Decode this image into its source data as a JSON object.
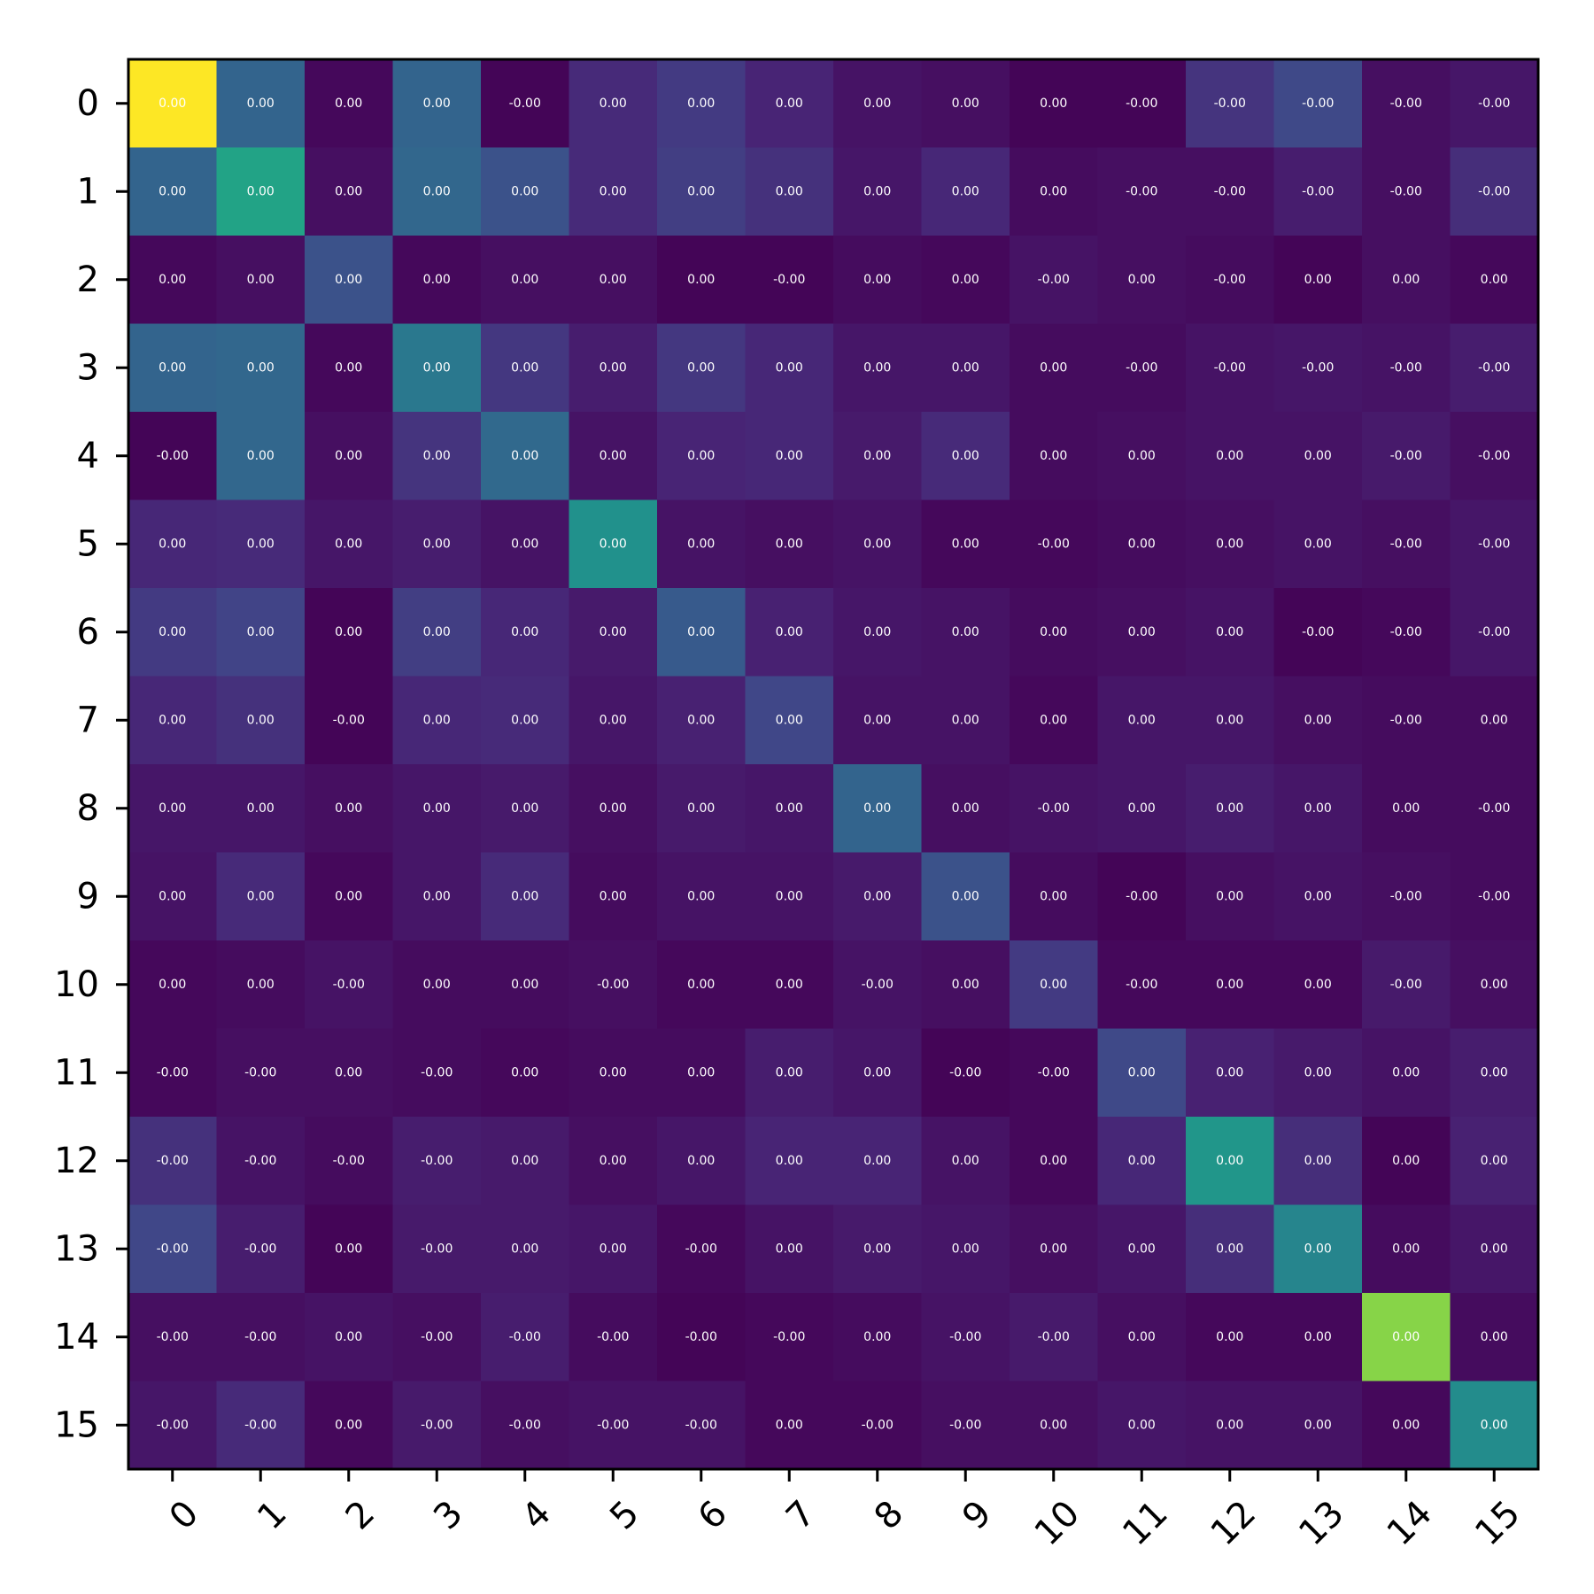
{
  "chart_data": {
    "type": "heatmap",
    "title": "",
    "xlabel": "",
    "ylabel": "",
    "colormap": "viridis",
    "color_range": [
      0,
      1
    ],
    "grid": false,
    "x_categories": [
      "0",
      "1",
      "2",
      "3",
      "4",
      "5",
      "6",
      "7",
      "8",
      "9",
      "10",
      "11",
      "12",
      "13",
      "14",
      "15"
    ],
    "y_categories": [
      "0",
      "1",
      "2",
      "3",
      "4",
      "5",
      "6",
      "7",
      "8",
      "9",
      "10",
      "11",
      "12",
      "13",
      "14",
      "15"
    ],
    "intensity": [
      [
        1.0,
        0.32,
        0.02,
        0.32,
        0.01,
        0.12,
        0.17,
        0.1,
        0.05,
        0.04,
        0.01,
        0.01,
        0.15,
        0.22,
        0.04,
        0.06
      ],
      [
        0.32,
        0.58,
        0.04,
        0.33,
        0.25,
        0.12,
        0.18,
        0.14,
        0.06,
        0.11,
        0.03,
        0.04,
        0.04,
        0.08,
        0.04,
        0.13
      ],
      [
        0.02,
        0.04,
        0.25,
        0.02,
        0.04,
        0.04,
        0.01,
        0.01,
        0.03,
        0.02,
        0.05,
        0.04,
        0.03,
        0.01,
        0.04,
        0.02
      ],
      [
        0.32,
        0.33,
        0.02,
        0.4,
        0.16,
        0.08,
        0.16,
        0.11,
        0.06,
        0.06,
        0.03,
        0.03,
        0.05,
        0.06,
        0.05,
        0.08
      ],
      [
        0.01,
        0.33,
        0.04,
        0.15,
        0.34,
        0.05,
        0.1,
        0.11,
        0.07,
        0.12,
        0.03,
        0.04,
        0.05,
        0.05,
        0.07,
        0.04
      ],
      [
        0.11,
        0.12,
        0.06,
        0.08,
        0.05,
        0.5,
        0.05,
        0.04,
        0.05,
        0.02,
        0.02,
        0.03,
        0.04,
        0.05,
        0.04,
        0.06
      ],
      [
        0.17,
        0.2,
        0.01,
        0.18,
        0.11,
        0.07,
        0.28,
        0.09,
        0.06,
        0.05,
        0.03,
        0.04,
        0.05,
        0.01,
        0.02,
        0.06
      ],
      [
        0.11,
        0.14,
        0.01,
        0.11,
        0.12,
        0.06,
        0.09,
        0.21,
        0.05,
        0.05,
        0.02,
        0.06,
        0.06,
        0.04,
        0.03,
        0.03
      ],
      [
        0.06,
        0.06,
        0.04,
        0.06,
        0.07,
        0.04,
        0.07,
        0.06,
        0.32,
        0.04,
        0.05,
        0.06,
        0.08,
        0.06,
        0.03,
        0.03
      ],
      [
        0.05,
        0.12,
        0.02,
        0.06,
        0.12,
        0.03,
        0.05,
        0.05,
        0.07,
        0.25,
        0.03,
        0.01,
        0.04,
        0.05,
        0.04,
        0.03
      ],
      [
        0.02,
        0.03,
        0.05,
        0.03,
        0.03,
        0.04,
        0.02,
        0.02,
        0.05,
        0.04,
        0.17,
        0.02,
        0.02,
        0.02,
        0.07,
        0.04
      ],
      [
        0.02,
        0.04,
        0.04,
        0.03,
        0.02,
        0.03,
        0.03,
        0.08,
        0.06,
        0.01,
        0.02,
        0.22,
        0.09,
        0.07,
        0.05,
        0.08
      ],
      [
        0.14,
        0.05,
        0.03,
        0.08,
        0.07,
        0.04,
        0.06,
        0.1,
        0.1,
        0.05,
        0.02,
        0.11,
        0.52,
        0.13,
        0.01,
        0.09
      ],
      [
        0.21,
        0.08,
        0.01,
        0.07,
        0.07,
        0.06,
        0.02,
        0.05,
        0.07,
        0.06,
        0.04,
        0.06,
        0.13,
        0.45,
        0.03,
        0.06
      ],
      [
        0.04,
        0.04,
        0.05,
        0.04,
        0.08,
        0.03,
        0.01,
        0.02,
        0.03,
        0.05,
        0.07,
        0.04,
        0.02,
        0.02,
        0.82,
        0.03
      ],
      [
        0.06,
        0.12,
        0.02,
        0.07,
        0.04,
        0.05,
        0.05,
        0.02,
        0.02,
        0.04,
        0.04,
        0.06,
        0.05,
        0.05,
        0.02,
        0.48
      ]
    ],
    "cell_labels": [
      [
        "0.00",
        "0.00",
        "0.00",
        "0.00",
        "-0.00",
        "0.00",
        "0.00",
        "0.00",
        "0.00",
        "0.00",
        "0.00",
        "-0.00",
        "-0.00",
        "-0.00",
        "-0.00",
        "-0.00"
      ],
      [
        "0.00",
        "0.00",
        "0.00",
        "0.00",
        "0.00",
        "0.00",
        "0.00",
        "0.00",
        "0.00",
        "0.00",
        "0.00",
        "-0.00",
        "-0.00",
        "-0.00",
        "-0.00",
        "-0.00"
      ],
      [
        "0.00",
        "0.00",
        "0.00",
        "0.00",
        "0.00",
        "0.00",
        "0.00",
        "-0.00",
        "0.00",
        "0.00",
        "-0.00",
        "0.00",
        "-0.00",
        "0.00",
        "0.00",
        "0.00"
      ],
      [
        "0.00",
        "0.00",
        "0.00",
        "0.00",
        "0.00",
        "0.00",
        "0.00",
        "0.00",
        "0.00",
        "0.00",
        "0.00",
        "-0.00",
        "-0.00",
        "-0.00",
        "-0.00",
        "-0.00"
      ],
      [
        "-0.00",
        "0.00",
        "0.00",
        "0.00",
        "0.00",
        "0.00",
        "0.00",
        "0.00",
        "0.00",
        "0.00",
        "0.00",
        "0.00",
        "0.00",
        "0.00",
        "-0.00",
        "-0.00"
      ],
      [
        "0.00",
        "0.00",
        "0.00",
        "0.00",
        "0.00",
        "0.00",
        "0.00",
        "0.00",
        "0.00",
        "0.00",
        "-0.00",
        "0.00",
        "0.00",
        "0.00",
        "-0.00",
        "-0.00"
      ],
      [
        "0.00",
        "0.00",
        "0.00",
        "0.00",
        "0.00",
        "0.00",
        "0.00",
        "0.00",
        "0.00",
        "0.00",
        "0.00",
        "0.00",
        "0.00",
        "-0.00",
        "-0.00",
        "-0.00"
      ],
      [
        "0.00",
        "0.00",
        "-0.00",
        "0.00",
        "0.00",
        "0.00",
        "0.00",
        "0.00",
        "0.00",
        "0.00",
        "0.00",
        "0.00",
        "0.00",
        "0.00",
        "-0.00",
        "0.00"
      ],
      [
        "0.00",
        "0.00",
        "0.00",
        "0.00",
        "0.00",
        "0.00",
        "0.00",
        "0.00",
        "0.00",
        "0.00",
        "-0.00",
        "0.00",
        "0.00",
        "0.00",
        "0.00",
        "-0.00"
      ],
      [
        "0.00",
        "0.00",
        "0.00",
        "0.00",
        "0.00",
        "0.00",
        "0.00",
        "0.00",
        "0.00",
        "0.00",
        "0.00",
        "-0.00",
        "0.00",
        "0.00",
        "-0.00",
        "-0.00"
      ],
      [
        "0.00",
        "0.00",
        "-0.00",
        "0.00",
        "0.00",
        "-0.00",
        "0.00",
        "0.00",
        "-0.00",
        "0.00",
        "0.00",
        "-0.00",
        "0.00",
        "0.00",
        "-0.00",
        "0.00"
      ],
      [
        "-0.00",
        "-0.00",
        "0.00",
        "-0.00",
        "0.00",
        "0.00",
        "0.00",
        "0.00",
        "0.00",
        "-0.00",
        "-0.00",
        "0.00",
        "0.00",
        "0.00",
        "0.00",
        "0.00"
      ],
      [
        "-0.00",
        "-0.00",
        "-0.00",
        "-0.00",
        "0.00",
        "0.00",
        "0.00",
        "0.00",
        "0.00",
        "0.00",
        "0.00",
        "0.00",
        "0.00",
        "0.00",
        "0.00",
        "0.00"
      ],
      [
        "-0.00",
        "-0.00",
        "0.00",
        "-0.00",
        "0.00",
        "0.00",
        "-0.00",
        "0.00",
        "0.00",
        "0.00",
        "0.00",
        "0.00",
        "0.00",
        "0.00",
        "0.00",
        "0.00"
      ],
      [
        "-0.00",
        "-0.00",
        "0.00",
        "-0.00",
        "-0.00",
        "-0.00",
        "-0.00",
        "-0.00",
        "0.00",
        "-0.00",
        "-0.00",
        "0.00",
        "0.00",
        "0.00",
        "0.00",
        "0.00"
      ],
      [
        "-0.00",
        "-0.00",
        "0.00",
        "-0.00",
        "-0.00",
        "-0.00",
        "-0.00",
        "0.00",
        "-0.00",
        "-0.00",
        "0.00",
        "0.00",
        "0.00",
        "0.00",
        "0.00",
        "0.00"
      ]
    ]
  }
}
